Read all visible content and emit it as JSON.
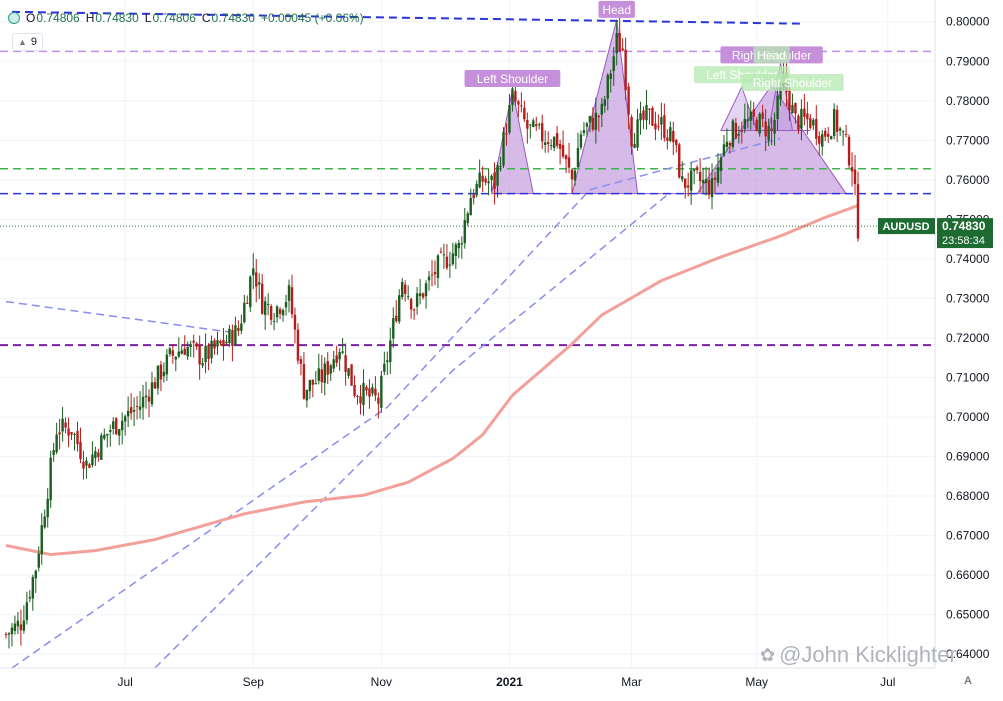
{
  "header": {
    "ohlc": {
      "o_label": "O",
      "o": "0.74806",
      "h_label": "H",
      "h": "0.74830",
      "l_label": "L",
      "l": "0.74806",
      "c_label": "C",
      "c": "0.74830",
      "change": "+0.00045 (+0.06%)"
    },
    "interval": "9",
    "interval_chevron": "▲"
  },
  "watermark": "@John Kicklighter",
  "axis_settings_label": "A",
  "colors": {
    "up_candle": "#1b5e20",
    "down_candle": "#b71c1c",
    "moving_average": "#f4a09a",
    "pattern_fill": "#b583d6",
    "pattern_label_bg": "#c58fd9",
    "price_tag": "#1e6b32",
    "trend_dashed": "#8a8df0",
    "upper_trend_dashed": "#2a34d8",
    "support_magenta": "#c48cf2",
    "support_green": "#3cb44b",
    "support_purple": "#7b1fa2"
  },
  "chart_data": {
    "type": "candlestick",
    "symbol": "AUDUSD",
    "last_price": "0.74830",
    "countdown": "23:58:34",
    "y_range": [
      0.6365,
      0.8055
    ],
    "y_ticks": [
      "0.80000",
      "0.79000",
      "0.78000",
      "0.77000",
      "0.76000",
      "0.75000",
      "0.74000",
      "0.73000",
      "0.72000",
      "0.71000",
      "0.70000",
      "0.69000",
      "0.68000",
      "0.67000",
      "0.66000",
      "0.65000",
      "0.64000"
    ],
    "x_ticks": [
      {
        "label": "Jul",
        "bar": 40,
        "bold": false
      },
      {
        "label": "Sep",
        "bar": 83,
        "bold": false
      },
      {
        "label": "Nov",
        "bar": 126,
        "bold": false
      },
      {
        "label": "2021",
        "bar": 169,
        "bold": true
      },
      {
        "label": "Mar",
        "bar": 210,
        "bold": false
      },
      {
        "label": "May",
        "bar": 252,
        "bold": false
      },
      {
        "label": "Jul",
        "bar": 296,
        "bold": false
      }
    ],
    "bars_count": 287,
    "anchors": [
      [
        0,
        0.645
      ],
      [
        5,
        0.648
      ],
      [
        10,
        0.662
      ],
      [
        17,
        0.697
      ],
      [
        22,
        0.697
      ],
      [
        27,
        0.688
      ],
      [
        35,
        0.697
      ],
      [
        45,
        0.703
      ],
      [
        55,
        0.715
      ],
      [
        60,
        0.718
      ],
      [
        66,
        0.715
      ],
      [
        72,
        0.718
      ],
      [
        78,
        0.722
      ],
      [
        83,
        0.738
      ],
      [
        86,
        0.729
      ],
      [
        90,
        0.727
      ],
      [
        95,
        0.731
      ],
      [
        100,
        0.707
      ],
      [
        106,
        0.71
      ],
      [
        112,
        0.718
      ],
      [
        117,
        0.707
      ],
      [
        125,
        0.704
      ],
      [
        129,
        0.719
      ],
      [
        133,
        0.735
      ],
      [
        137,
        0.728
      ],
      [
        145,
        0.738
      ],
      [
        152,
        0.743
      ],
      [
        156,
        0.756
      ],
      [
        160,
        0.76
      ],
      [
        164,
        0.759
      ],
      [
        170,
        0.781
      ],
      [
        175,
        0.773
      ],
      [
        180,
        0.771
      ],
      [
        185,
        0.77
      ],
      [
        190,
        0.76
      ],
      [
        193,
        0.772
      ],
      [
        200,
        0.777
      ],
      [
        205,
        0.795
      ],
      [
        207,
        0.793
      ],
      [
        210,
        0.771
      ],
      [
        215,
        0.776
      ],
      [
        220,
        0.774
      ],
      [
        224,
        0.77
      ],
      [
        227,
        0.759
      ],
      [
        232,
        0.76
      ],
      [
        237,
        0.758
      ],
      [
        242,
        0.771
      ],
      [
        247,
        0.774
      ],
      [
        252,
        0.775
      ],
      [
        257,
        0.772
      ],
      [
        261,
        0.785
      ],
      [
        265,
        0.775
      ],
      [
        270,
        0.775
      ],
      [
        274,
        0.771
      ],
      [
        278,
        0.775
      ],
      [
        281,
        0.771
      ],
      [
        284,
        0.764
      ],
      [
        286,
        0.748
      ]
    ],
    "moving_average": [
      [
        0,
        0.6675
      ],
      [
        15,
        0.6652
      ],
      [
        30,
        0.6662
      ],
      [
        50,
        0.669
      ],
      [
        80,
        0.6755
      ],
      [
        100,
        0.6785
      ],
      [
        120,
        0.6802
      ],
      [
        135,
        0.6835
      ],
      [
        150,
        0.6895
      ],
      [
        160,
        0.6955
      ],
      [
        170,
        0.7055
      ],
      [
        190,
        0.7185
      ],
      [
        200,
        0.7258
      ],
      [
        220,
        0.7345
      ],
      [
        240,
        0.7405
      ],
      [
        260,
        0.7458
      ],
      [
        275,
        0.7505
      ],
      [
        286,
        0.7535
      ]
    ],
    "horizontal_lines": [
      {
        "name": "resistance",
        "y": 0.7925,
        "color": "#c48cf2"
      },
      {
        "name": "support-green",
        "y": 0.7628,
        "color": "#3cb44b"
      },
      {
        "name": "neckline",
        "y": 0.7565,
        "color": "#2a34d8"
      },
      {
        "name": "support-purple",
        "y": 0.7182,
        "color": "#7b1fa2"
      }
    ],
    "trend_lines": [
      {
        "name": "upper-trend",
        "points": [
          [
            2,
            0.8025
          ],
          [
            268,
            0.7995
          ]
        ],
        "color": "#2a34d8"
      },
      {
        "name": "down-trend",
        "points": [
          [
            0,
            0.7292
          ],
          [
            75,
            0.7215
          ]
        ],
        "color": "#8a8df0"
      },
      {
        "name": "rising-trend-a",
        "points": [
          [
            2,
            0.6365
          ],
          [
            128,
            0.7025
          ],
          [
            196,
            0.7575
          ],
          [
            260,
            0.7705
          ]
        ],
        "color": "#8a8df0"
      },
      {
        "name": "rising-trend-b",
        "points": [
          [
            50,
            0.6365
          ],
          [
            150,
            0.7118
          ],
          [
            222,
            0.7562
          ]
        ],
        "color": "#8a8df0"
      }
    ],
    "patterns": [
      {
        "name": "head-and-shoulders-large",
        "polygon": [
          [
            163,
            0.7565
          ],
          [
            170,
            0.7828
          ],
          [
            177,
            0.7565
          ],
          [
            190,
            0.7565
          ],
          [
            205,
            0.8005
          ],
          [
            212,
            0.7565
          ],
          [
            232,
            0.7565
          ],
          [
            257,
            0.784
          ],
          [
            282,
            0.7565
          ]
        ],
        "labels": [
          {
            "text": "Left Shoulder",
            "bar": 170,
            "y": 0.7855
          },
          {
            "text": "Head",
            "bar": 205,
            "y": 0.803
          },
          {
            "text": "Right Shoulder",
            "bar": 257,
            "y": 0.7915
          }
        ]
      },
      {
        "name": "head-and-shoulders-small",
        "polygon": [
          [
            240,
            0.7725
          ],
          [
            247,
            0.7835
          ],
          [
            252,
            0.7725
          ],
          [
            256,
            0.7725
          ],
          [
            260,
            0.7895
          ],
          [
            264,
            0.7725
          ],
          [
            270,
            0.7725
          ]
        ],
        "labels": [
          {
            "text": "Left Shoulder",
            "bar": 247,
            "y": 0.7865
          },
          {
            "text": "Head",
            "bar": 257,
            "y": 0.7915
          },
          {
            "text": "Right Shoulder",
            "bar": 264,
            "y": 0.7845
          }
        ]
      }
    ]
  }
}
